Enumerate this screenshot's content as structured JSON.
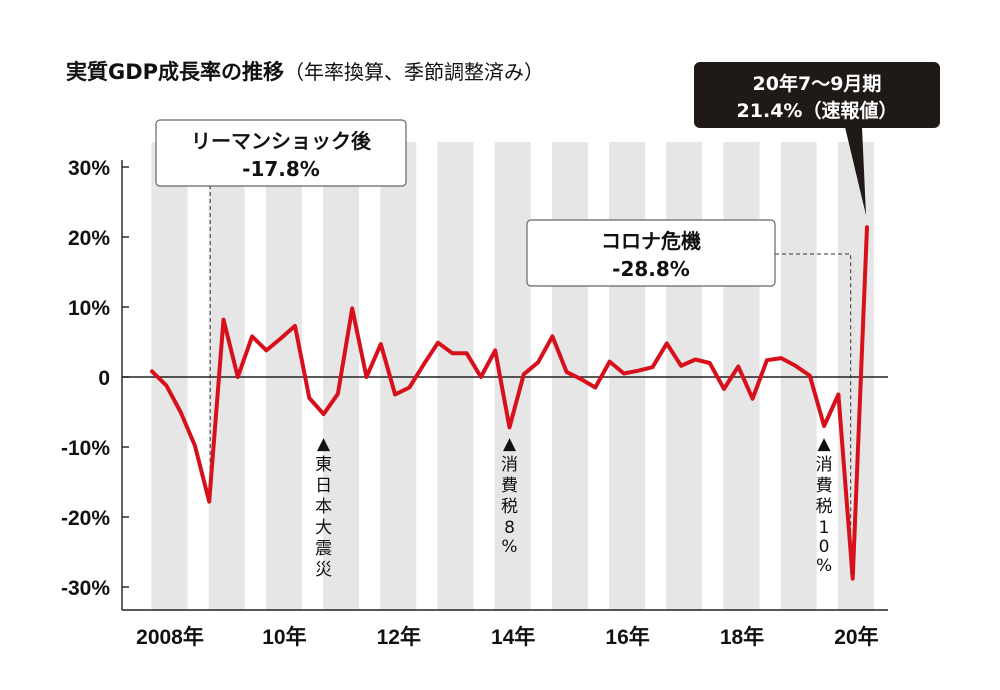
{
  "title": {
    "main": "実質GDP成長率の推移",
    "sub": "（年率換算、季節調整済み）"
  },
  "colors": {
    "line": "#d7101c",
    "band": "#e6e6e6",
    "callout_dark": "#1f1a17"
  },
  "chart_data": {
    "type": "line",
    "title": "実質GDP成長率の推移（年率換算、季節調整済み）",
    "xlabel": "",
    "ylabel": "",
    "ylim": [
      -30,
      30
    ],
    "y_ticks": [
      "30%",
      "20%",
      "10%",
      "0",
      "-10%",
      "-20%",
      "-30%"
    ],
    "x_tick_labels": [
      "2008年",
      "10年",
      "12年",
      "14年",
      "16年",
      "18年",
      "20年"
    ],
    "x_tick_years": [
      2008,
      2010,
      2012,
      2014,
      2016,
      2018,
      2020
    ],
    "grid": "alternating year bands",
    "series": [
      {
        "x": [
          2008.0,
          2008.25,
          2008.5,
          2008.75,
          2009.0,
          2009.25,
          2009.5,
          2009.75,
          2010.0,
          2010.25,
          2010.5,
          2010.75,
          2011.0,
          2011.25,
          2011.5,
          2011.75,
          2012.0,
          2012.25,
          2012.5,
          2012.75,
          2013.0,
          2013.25,
          2013.5,
          2013.75,
          2014.0,
          2014.25,
          2014.5,
          2014.75,
          2015.0,
          2015.25,
          2015.5,
          2015.75,
          2016.0,
          2016.25,
          2016.5,
          2016.75,
          2017.0,
          2017.25,
          2017.5,
          2017.75,
          2018.0,
          2018.25,
          2018.5,
          2018.75,
          2019.0,
          2019.25,
          2019.5,
          2019.75,
          2020.0,
          2020.25,
          2020.5
        ],
        "values": [
          0.8,
          -1.2,
          -5.0,
          -9.8,
          -17.8,
          8.2,
          0.0,
          5.8,
          3.8,
          5.5,
          7.3,
          -3.0,
          -5.3,
          -2.4,
          9.8,
          0.0,
          4.7,
          -2.5,
          -1.5,
          1.8,
          4.9,
          3.4,
          3.4,
          0.0,
          3.8,
          -7.2,
          0.4,
          2.1,
          5.8,
          0.7,
          -0.3,
          -1.5,
          2.2,
          0.5,
          0.9,
          1.4,
          4.8,
          1.6,
          2.5,
          2.0,
          -1.7,
          1.5,
          -3.1,
          2.4,
          2.7,
          1.6,
          0.2,
          -7.0,
          -2.5,
          -28.8,
          21.4
        ]
      }
    ],
    "annotations": [
      {
        "text": "東日本大震災",
        "x": 2011.0,
        "arrow": "▲"
      },
      {
        "text": "消費税8%",
        "x": 2014.25,
        "arrow": "▲"
      },
      {
        "text": "消費税10%",
        "x": 2019.75,
        "arrow": "▲"
      }
    ],
    "callouts": [
      {
        "line1": "リーマンショック後",
        "line2": "-17.8%",
        "x": 2009.0,
        "y": -17.8
      },
      {
        "line1": "コロナ危機",
        "line2": "-28.8%",
        "x": 2020.25,
        "y": -28.8
      },
      {
        "line1": "20年7～9月期",
        "line2": "21.4%（速報値）",
        "x": 2020.5,
        "y": 21.4
      }
    ]
  }
}
